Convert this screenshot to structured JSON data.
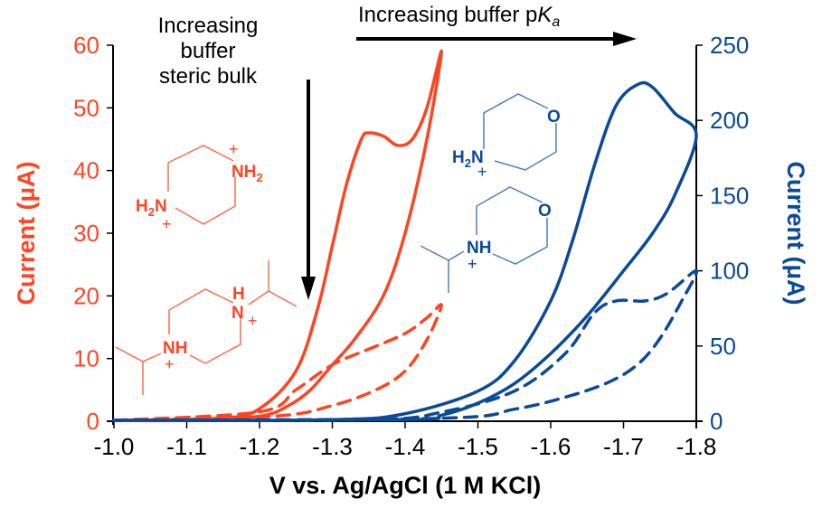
{
  "chart_data": {
    "type": "line",
    "title": "",
    "xlabel": "V vs. Ag/AgCl (1 M KCl)",
    "ylabel_left": "Current (μA)",
    "ylabel_right": "Current (μA)",
    "xlim": [
      -1.0,
      -1.8
    ],
    "ylim_left": [
      0,
      60
    ],
    "ylim_right": [
      0,
      250
    ],
    "x_ticks": [
      "-1.0",
      "-1.1",
      "-1.2",
      "-1.3",
      "-1.4",
      "-1.5",
      "-1.6",
      "-1.7",
      "-1.8"
    ],
    "x_tick_values": [
      -1.0,
      -1.1,
      -1.2,
      -1.3,
      -1.4,
      -1.5,
      -1.6,
      -1.7,
      -1.8
    ],
    "y_ticks_left": [
      "0",
      "10",
      "20",
      "30",
      "40",
      "50",
      "60"
    ],
    "y_tick_values_left": [
      0,
      10,
      20,
      30,
      40,
      50,
      60
    ],
    "y_ticks_right": [
      "0",
      "50",
      "100",
      "150",
      "200",
      "250"
    ],
    "y_tick_values_right": [
      0,
      50,
      100,
      150,
      200,
      250
    ],
    "grid": false,
    "colors": {
      "left_axis": "#ff4422",
      "right_axis": "#0b4a99",
      "axis": "#000000"
    },
    "series": [
      {
        "name": "piperazine (solid, left axis)",
        "axis": "left",
        "color": "#ff4422",
        "dash": false,
        "x": [
          -1.0,
          -1.15,
          -1.2,
          -1.25,
          -1.28,
          -1.3,
          -1.32,
          -1.34,
          -1.35,
          -1.37,
          -1.39,
          -1.41,
          -1.43,
          -1.45,
          -1.43,
          -1.4,
          -1.37,
          -1.33,
          -1.3,
          -1.27,
          -1.24,
          -1.2,
          -1.1,
          -1.0
        ],
        "y": [
          0,
          0.5,
          2,
          8,
          18,
          28,
          38,
          45,
          46,
          45.5,
          44,
          45,
          50,
          59,
          45,
          30,
          20,
          13,
          9,
          5,
          2.5,
          0.8,
          0.1,
          0
        ]
      },
      {
        "name": "N,N'-diisopropylpiperazine (dashed, left axis)",
        "axis": "left",
        "color": "#ff4422",
        "dash": true,
        "x": [
          -1.0,
          -1.2,
          -1.25,
          -1.3,
          -1.35,
          -1.4,
          -1.43,
          -1.45,
          -1.43,
          -1.4,
          -1.36,
          -1.3,
          -1.22,
          -1.0
        ],
        "y": [
          0,
          1.5,
          5,
          9,
          11.5,
          14,
          16.5,
          18.5,
          13,
          8,
          5,
          2.5,
          0.8,
          0
        ]
      },
      {
        "name": "morpholine (solid, right axis)",
        "axis": "right",
        "color": "#0b4a99",
        "dash": false,
        "x": [
          -1.0,
          -1.3,
          -1.4,
          -1.5,
          -1.55,
          -1.6,
          -1.63,
          -1.66,
          -1.69,
          -1.72,
          -1.74,
          -1.77,
          -1.8,
          -1.77,
          -1.74,
          -1.7,
          -1.65,
          -1.6,
          -1.55,
          -1.5,
          -1.45,
          -1.4,
          -1.0
        ],
        "y": [
          0,
          1,
          5,
          20,
          40,
          80,
          120,
          170,
          210,
          224,
          222,
          205,
          190,
          150,
          125,
          100,
          70,
          45,
          25,
          12,
          4,
          1,
          0
        ]
      },
      {
        "name": "N-isopropylmorpholine (dashed, right axis)",
        "axis": "right",
        "color": "#0b4a99",
        "dash": true,
        "x": [
          -1.0,
          -1.35,
          -1.45,
          -1.55,
          -1.62,
          -1.66,
          -1.69,
          -1.73,
          -1.76,
          -1.8,
          -1.78,
          -1.75,
          -1.72,
          -1.68,
          -1.62,
          -1.55,
          -1.45,
          -1.0
        ],
        "y": [
          0,
          1,
          6,
          20,
          45,
          72,
          80,
          80,
          85,
          100,
          80,
          55,
          38,
          26,
          16,
          8,
          2,
          0
        ]
      }
    ],
    "annotations": {
      "steric": [
        "Increasing",
        "buffer",
        "steric bulk"
      ],
      "pka_main": "Increasing buffer p",
      "pka_k": "K",
      "pka_a": "a"
    },
    "structure_labels": {
      "piperazine_nh2_top": "NH",
      "piperazine_nh2_top_sub": "2",
      "piperazine_h2n_h": "H",
      "piperazine_h2n_sub": "2",
      "piperazine_h2n_n": "N",
      "dipp_h": "H",
      "dipp_n": "N",
      "dipp_nh": "NH",
      "morph_h": "H",
      "morph_sub": "2",
      "morph_n": "N",
      "morph_o": "O",
      "ipmorph_nh": "NH",
      "ipmorph_o": "O",
      "plus": "+"
    }
  }
}
